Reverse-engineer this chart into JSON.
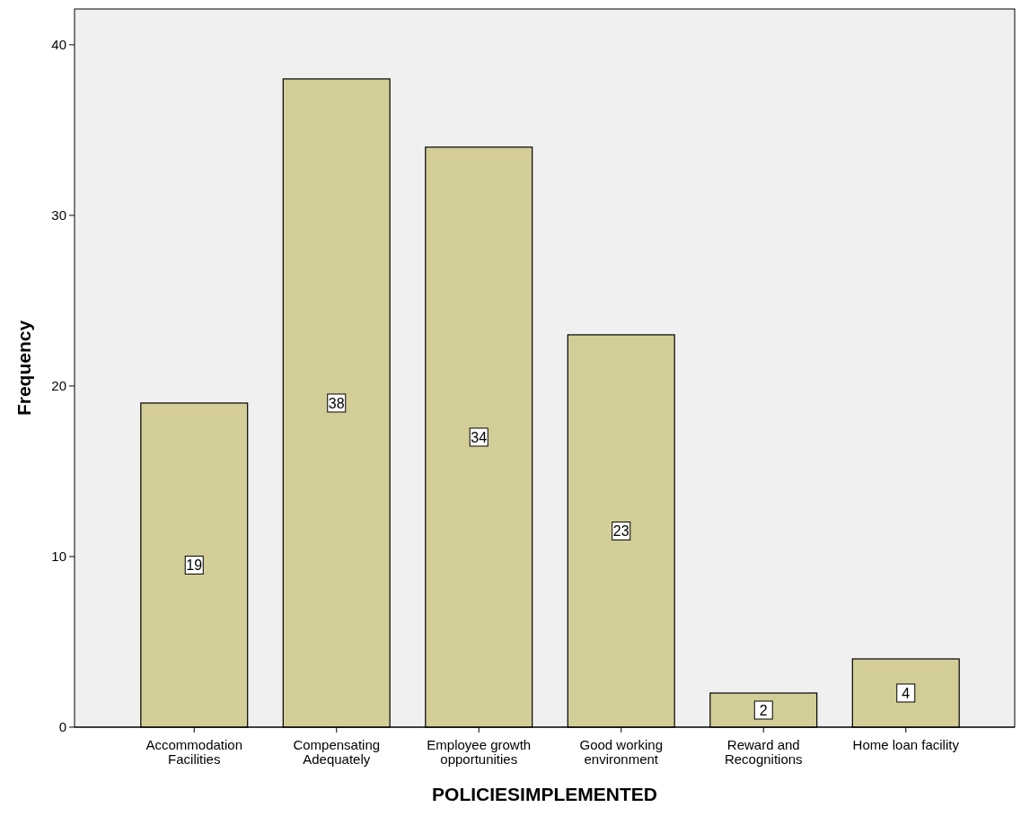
{
  "chart_data": {
    "type": "bar",
    "xlabel": "POLICIESIMPLEMENTED",
    "ylabel": "Frequency",
    "categories": [
      "Accommodation Facilities",
      "Compensating Adequately",
      "Employee growth opportunities",
      "Good working environment",
      "Reward and Recognitions",
      "Home loan facility"
    ],
    "values": [
      19,
      38,
      34,
      23,
      2,
      4
    ],
    "color": "#d3ce97",
    "ylim": [
      0,
      42.1
    ],
    "yticks": [
      0,
      10,
      20,
      30,
      40
    ],
    "grid": false,
    "data_labels": true
  }
}
